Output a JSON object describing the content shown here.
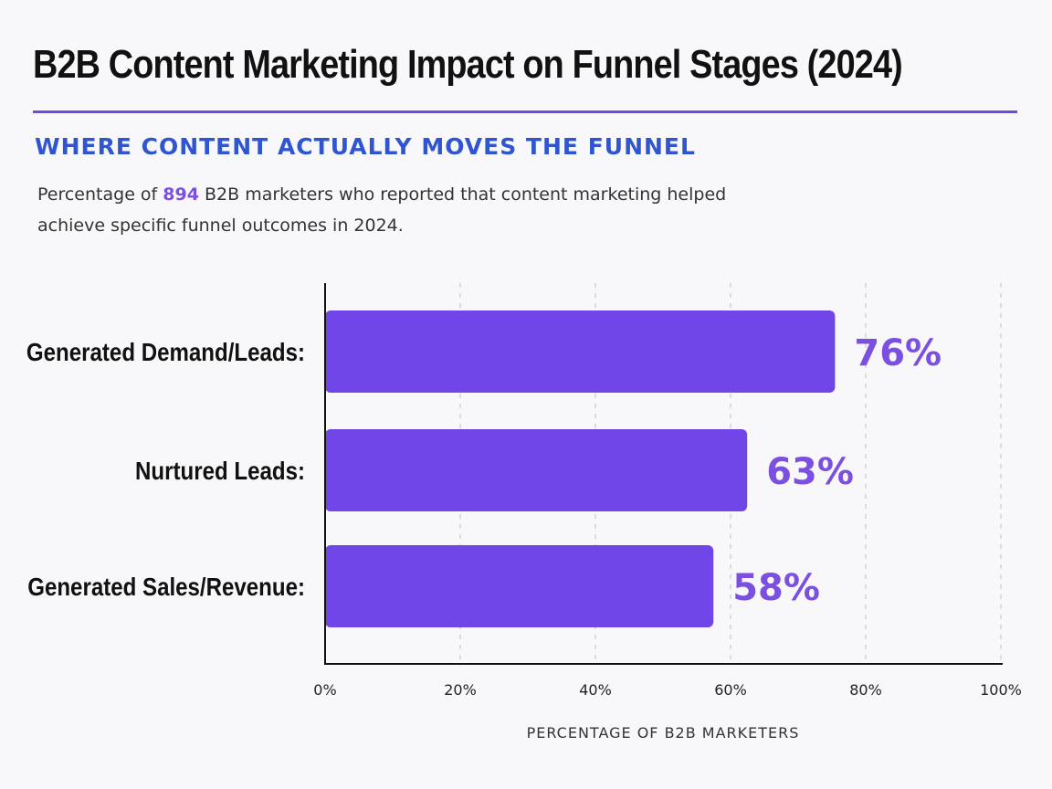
{
  "header": {
    "title": "B2B Content Marketing Impact on Funnel Stages (2024)",
    "subtitle": "WHERE CONTENT ACTUALLY MOVES THE FUNNEL",
    "description_before": "Percentage of ",
    "description_highlight": "894",
    "description_after": " B2B marketers who reported that content marketing helped achieve specific funnel outcomes in 2024."
  },
  "colors": {
    "bar": "#7146e8",
    "value_label": "#7b4fe0",
    "subtitle": "#2f56d0",
    "rule": "#7248e0",
    "axis": "#111111",
    "grid": "#c9c9cf"
  },
  "chart_data": {
    "type": "bar",
    "orientation": "horizontal",
    "categories": [
      "Generated Demand/Leads:",
      "Nurtured Leads:",
      "Generated Sales/Revenue:"
    ],
    "values": [
      76,
      63,
      58
    ],
    "value_labels": [
      "76%",
      "63%",
      "58%"
    ],
    "xlim": [
      0,
      100
    ],
    "xticks": [
      0,
      20,
      40,
      60,
      80,
      100
    ],
    "xtick_labels": [
      "0%",
      "20%",
      "40%",
      "60%",
      "80%",
      "100%"
    ],
    "xlabel": "PERCENTAGE OF B2B MARKETERS",
    "ylabel": "",
    "grid": "vertical dashed"
  }
}
